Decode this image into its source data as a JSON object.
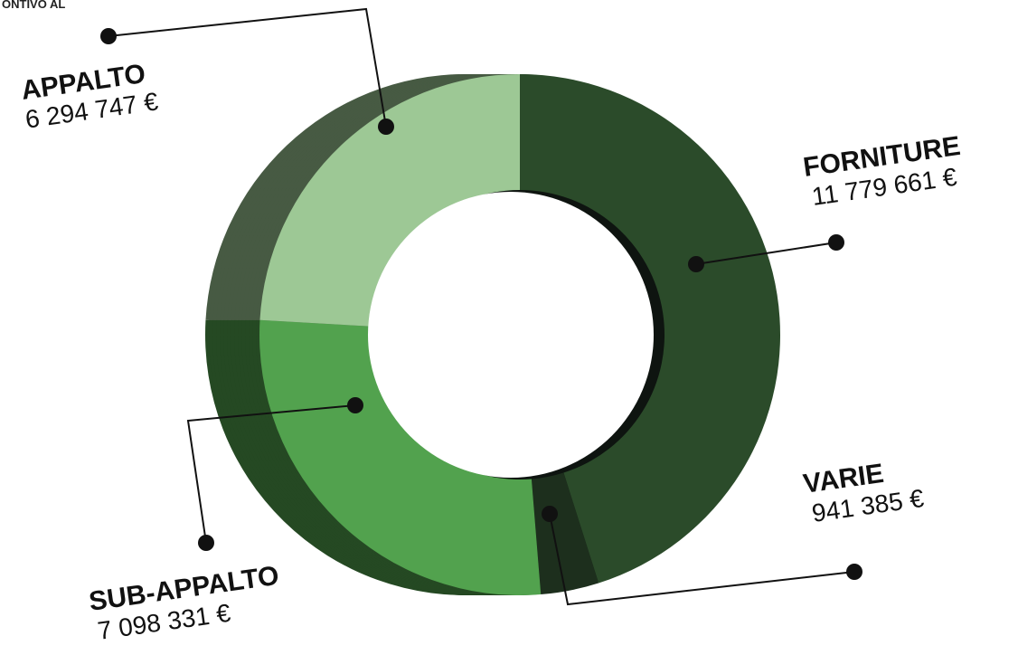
{
  "chart_data": {
    "type": "pie",
    "donut": true,
    "title": "ONTIVO AL",
    "categories": [
      "FORNITURE",
      "VARIE",
      "SUB-APPALTO",
      "APPALTO"
    ],
    "values": [
      11779661,
      941385,
      7098331,
      6294747
    ],
    "value_labels": [
      "11 779 661 €",
      "941 385 €",
      "7 098 331 €",
      "6 294 747 €"
    ],
    "colors": [
      "#2b4b2a",
      "#1d2f1d",
      "#52a24e",
      "#9dc895"
    ]
  }
}
